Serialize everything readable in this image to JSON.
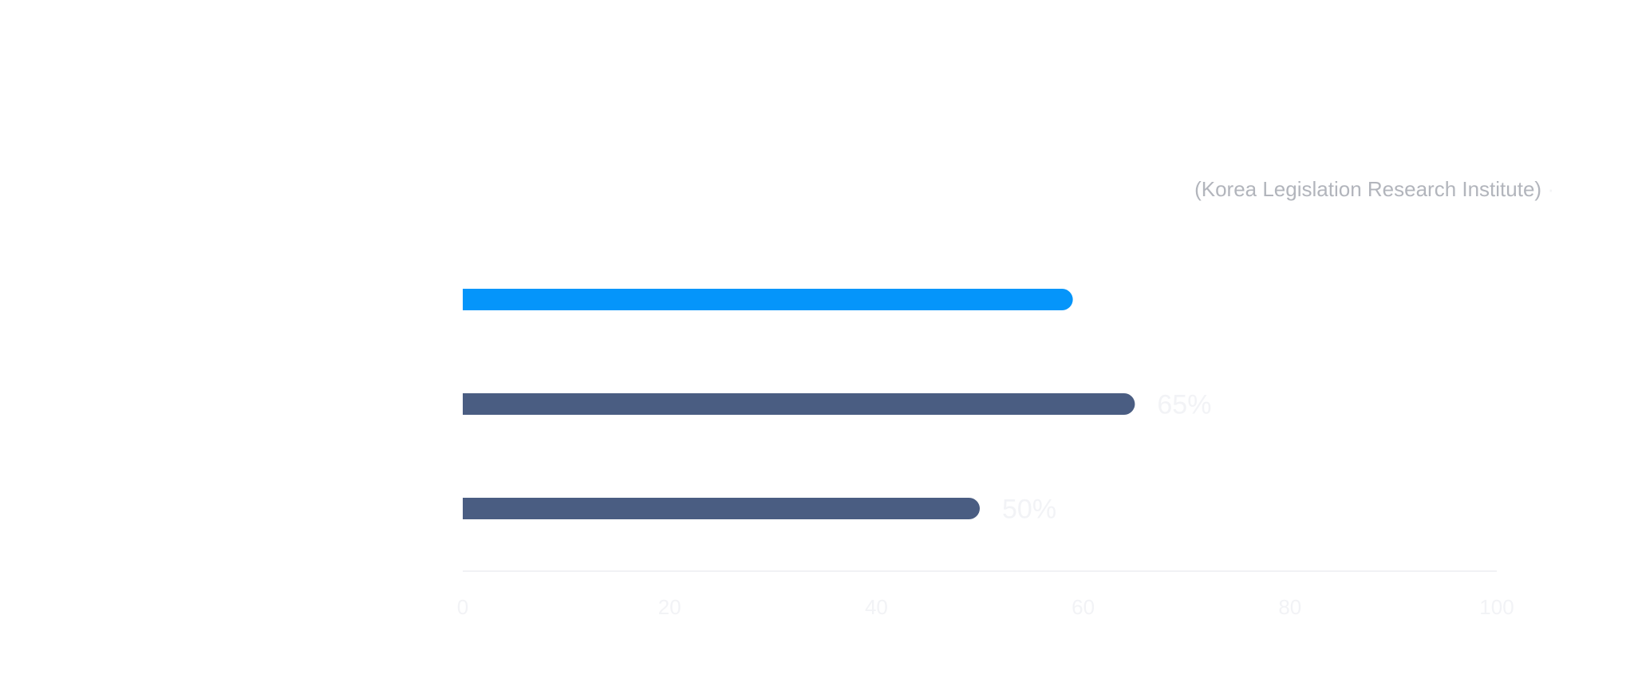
{
  "chart_data": {
    "type": "bar",
    "orientation": "horizontal",
    "title": "",
    "source": {
      "org": "",
      "org_en": "(Korea Legislation Research Institute)",
      "separator": "·",
      "date": ""
    },
    "categories": [
      "",
      "",
      ""
    ],
    "values": [
      59,
      65,
      50
    ],
    "value_labels": [
      "",
      "65%",
      "50%"
    ],
    "highlight_index": 0,
    "colors": {
      "highlight": "#0595fa",
      "default": "#4a5d82",
      "category_label": "#f2f3f6",
      "value_label": "#f2f3f6",
      "tick_label": "#f2f3f6",
      "axis_line": "#f1f2f5"
    },
    "xlim": [
      0,
      100
    ],
    "xticks": [
      0,
      20,
      40,
      60,
      80,
      100
    ],
    "grid": false,
    "legend": "none"
  }
}
